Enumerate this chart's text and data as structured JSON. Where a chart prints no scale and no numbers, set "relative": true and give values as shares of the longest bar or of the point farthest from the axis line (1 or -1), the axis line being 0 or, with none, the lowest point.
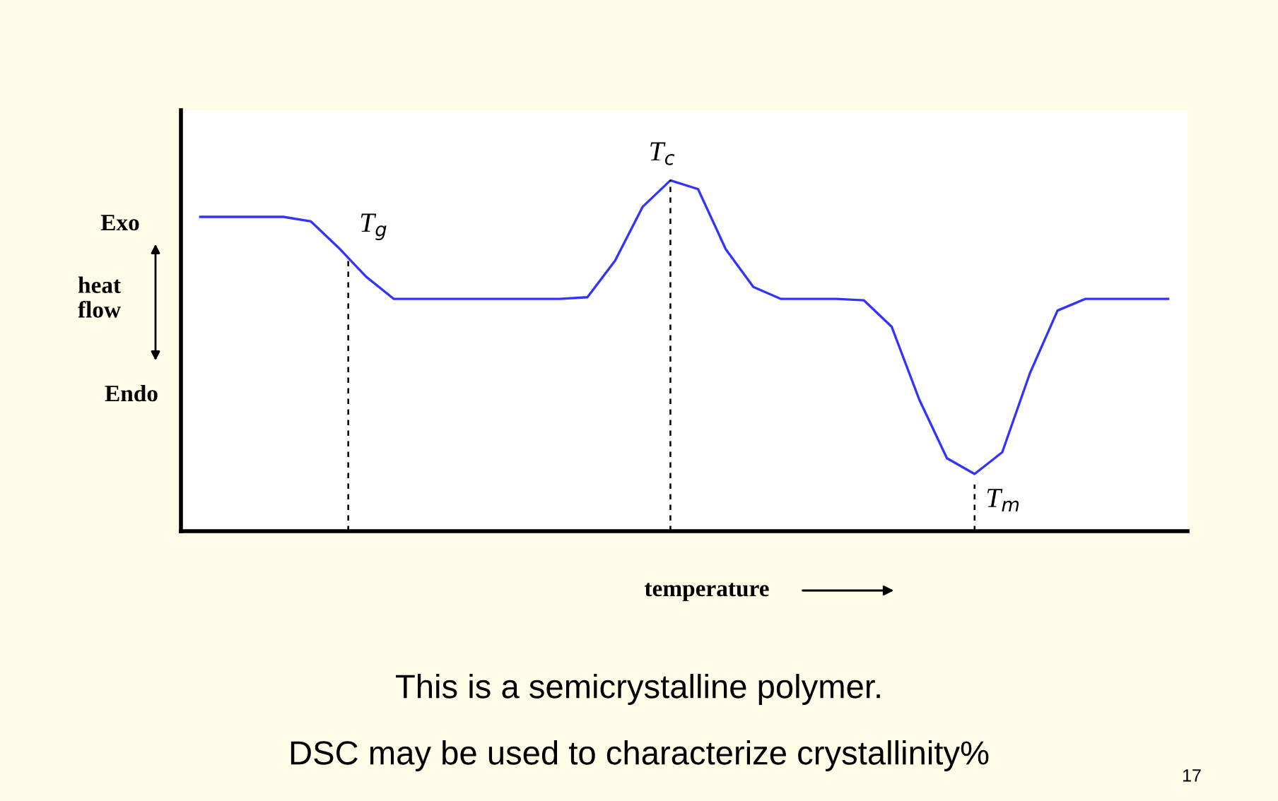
{
  "chart_data": {
    "type": "line",
    "relative": true,
    "color": "#3333ff",
    "categories": [
      null,
      null,
      null,
      null,
      null,
      null,
      null,
      null,
      null,
      null,
      null,
      null,
      null,
      null,
      null,
      null,
      null,
      null,
      null,
      null,
      null,
      null,
      null,
      null,
      null,
      null,
      null,
      null,
      null,
      null,
      null,
      null,
      null,
      null,
      null,
      null
    ],
    "values": [
      0.896,
      0.896,
      0.896,
      0.896,
      0.883,
      0.808,
      0.725,
      0.662,
      0.662,
      0.662,
      0.662,
      0.662,
      0.662,
      0.662,
      0.667,
      0.771,
      0.925,
      1.0,
      0.975,
      0.804,
      0.696,
      0.662,
      0.662,
      0.662,
      0.658,
      0.583,
      0.375,
      0.208,
      0.163,
      0.225,
      0.45,
      0.629,
      0.662,
      0.662,
      0.662,
      0.662
    ],
    "xlabel": "temperature",
    "annotations": [
      "T$_{g}$",
      "T$_{c}$",
      "T$_{m}$",
      "Exo",
      "heat\nflow",
      "Endo",
      "This is a semicrystalline polymer.",
      "DSC may be used to characterize crystallinity%",
      "17"
    ]
  }
}
